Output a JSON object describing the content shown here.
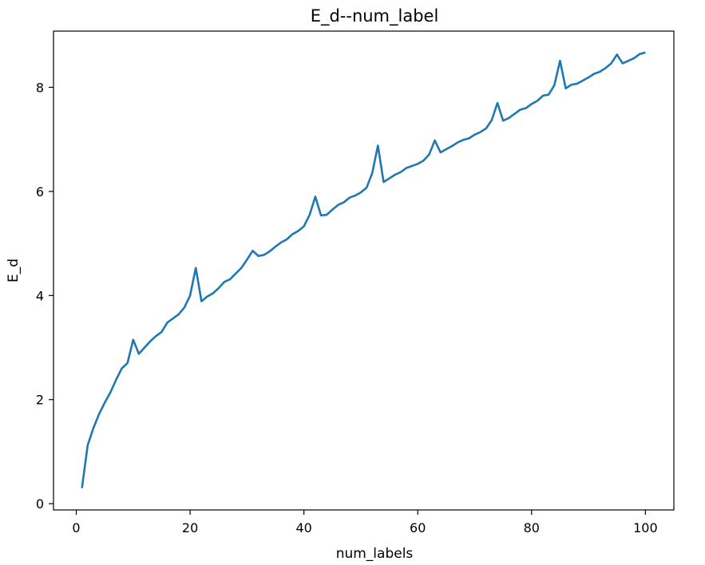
{
  "chart_data": {
    "type": "line",
    "title": "E_d--num_label",
    "xlabel": "num_labels",
    "ylabel": "E_d",
    "xlim": [
      -4,
      105
    ],
    "ylim": [
      -0.12,
      9.08
    ],
    "xticks": [
      0,
      20,
      40,
      60,
      80,
      100
    ],
    "yticks": [
      0,
      2,
      4,
      6,
      8
    ],
    "grid": false,
    "line_color": "#1f77b4",
    "series": [
      {
        "x": [
          1,
          2,
          3,
          4,
          5,
          6,
          7,
          8,
          9,
          10,
          11,
          12,
          13,
          14,
          15,
          16,
          17,
          18,
          19,
          20,
          21,
          22,
          23,
          24,
          25,
          26,
          27,
          28,
          29,
          30,
          31,
          32,
          33,
          34,
          35,
          36,
          37,
          38,
          39,
          40,
          41,
          42,
          43,
          44,
          45,
          46,
          47,
          48,
          49,
          50,
          51,
          52,
          53,
          54,
          55,
          56,
          57,
          58,
          59,
          60,
          61,
          62,
          63,
          64,
          65,
          66,
          67,
          68,
          69,
          70,
          71,
          72,
          73,
          74,
          75,
          76,
          77,
          78,
          79,
          80,
          81,
          82,
          83,
          84,
          85,
          86,
          87,
          88,
          89,
          90,
          91,
          92,
          93,
          94,
          95,
          96,
          97,
          98,
          99,
          100
        ],
        "values": [
          0.3,
          1.12,
          1.45,
          1.72,
          1.94,
          2.14,
          2.38,
          2.6,
          2.7,
          3.15,
          2.88,
          3.0,
          3.12,
          3.22,
          3.3,
          3.48,
          3.56,
          3.64,
          3.77,
          4.0,
          4.53,
          3.89,
          3.98,
          4.04,
          4.14,
          4.26,
          4.31,
          4.42,
          4.53,
          4.69,
          4.86,
          4.76,
          4.78,
          4.85,
          4.94,
          5.02,
          5.08,
          5.18,
          5.24,
          5.33,
          5.55,
          5.9,
          5.54,
          5.55,
          5.65,
          5.74,
          5.79,
          5.88,
          5.92,
          5.98,
          6.07,
          6.35,
          6.88,
          6.18,
          6.25,
          6.32,
          6.37,
          6.45,
          6.49,
          6.53,
          6.59,
          6.71,
          6.98,
          6.75,
          6.81,
          6.87,
          6.94,
          6.99,
          7.02,
          7.09,
          7.14,
          7.21,
          7.37,
          7.7,
          7.36,
          7.41,
          7.49,
          7.57,
          7.6,
          7.68,
          7.74,
          7.84,
          7.86,
          8.04,
          8.51,
          7.98,
          8.05,
          8.07,
          8.13,
          8.19,
          8.26,
          8.3,
          8.37,
          8.46,
          8.63,
          8.46,
          8.51,
          8.56,
          8.64,
          8.67
        ]
      }
    ]
  }
}
